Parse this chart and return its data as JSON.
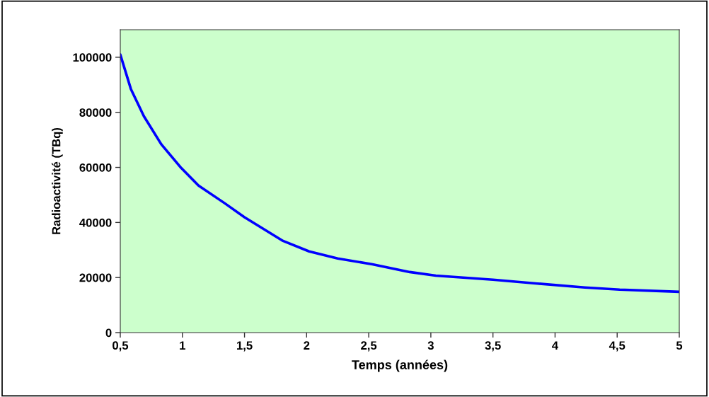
{
  "chart_data": {
    "type": "line",
    "xlabel": "Temps (années)",
    "ylabel": "Radioactivité (TBq)",
    "xlim": [
      0.5,
      5
    ],
    "ylim": [
      0,
      110000
    ],
    "xticks": [
      {
        "value": 0.5,
        "label": "0,5"
      },
      1,
      {
        "value": 1.5,
        "label": "1,5"
      },
      2,
      {
        "value": 2.5,
        "label": "2,5"
      },
      3,
      {
        "value": 3.5,
        "label": "3,5"
      },
      4,
      {
        "value": 4.5,
        "label": "4,5"
      },
      5
    ],
    "yticks": [
      0,
      20000,
      40000,
      60000,
      80000,
      100000
    ],
    "grid": false,
    "marker": "none",
    "line_style": "solid",
    "series": [
      {
        "color": "#0000ff",
        "x": [
          0.5,
          0.585,
          0.69,
          0.83,
          0.99,
          1.13,
          1.34,
          1.5,
          1.81,
          2.02,
          2.25,
          2.53,
          2.83,
          3.04,
          3.5,
          3.86,
          4.24,
          4.52,
          5
        ],
        "values": [
          101000,
          88500,
          78600,
          68400,
          59800,
          53400,
          47000,
          41900,
          33300,
          29500,
          26900,
          24800,
          22000,
          20700,
          19200,
          17800,
          16400,
          15600,
          14800
        ]
      }
    ]
  }
}
